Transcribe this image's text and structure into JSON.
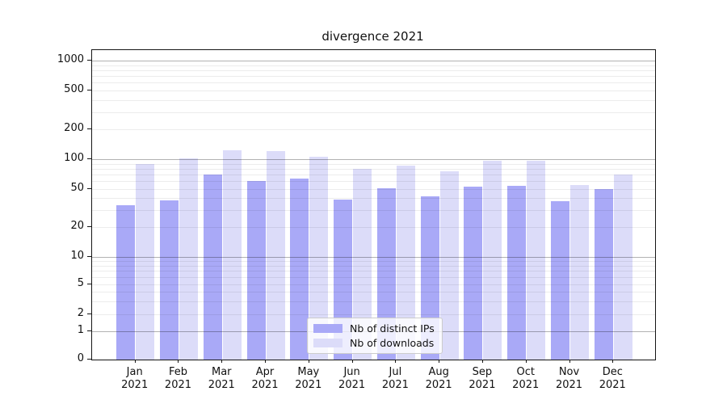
{
  "title": "divergence 2021",
  "chart_data": {
    "type": "bar",
    "title": "divergence 2021",
    "categories": [
      "Jan",
      "Feb",
      "Mar",
      "Apr",
      "May",
      "Jun",
      "Jul",
      "Aug",
      "Sep",
      "Oct",
      "Nov",
      "Dec"
    ],
    "year_label": "2021",
    "series": [
      {
        "name": "Nb of distinct IPs",
        "color": "#a9a9f7",
        "values": [
          34,
          38,
          70,
          60,
          63,
          39,
          51,
          42,
          53,
          54,
          37,
          50
        ]
      },
      {
        "name": "Nb of downloads",
        "color": "#dcdcf9",
        "values": [
          90,
          102,
          122,
          121,
          106,
          80,
          86,
          75,
          97,
          97,
          55,
          70
        ]
      }
    ],
    "yscale": "symlog",
    "yticks": [
      0,
      1,
      2,
      5,
      10,
      20,
      50,
      100,
      200,
      500,
      1000
    ],
    "ylim": [
      0,
      1258
    ],
    "grid": true,
    "legend_position": "lower center"
  },
  "colors": {
    "bar_dark": "#a9a9f7",
    "bar_light": "#dcdcf9",
    "major_grid": "#b3b3b3",
    "minor_grid": "#ececec",
    "spine": "#151515",
    "legend_border": "#cccccc",
    "background": "#ffffff"
  }
}
